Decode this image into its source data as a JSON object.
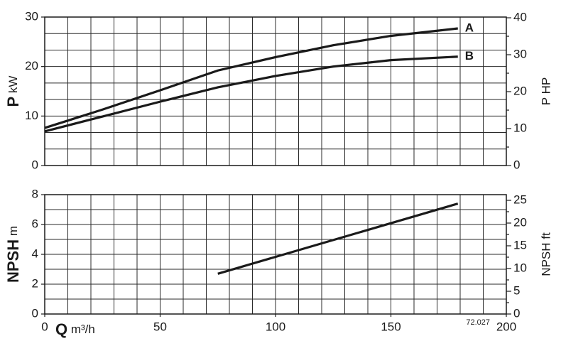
{
  "chart_data": [
    {
      "type": "line",
      "ylabel_symbol": "P",
      "ylabel_unit": "kW",
      "y2label": "P HP",
      "xlim": [
        0,
        200
      ],
      "ylim": [
        0,
        30
      ],
      "yticks": [
        0,
        10,
        20,
        30
      ],
      "y2lim": [
        0,
        40.2
      ],
      "y2ticks": [
        0,
        10,
        20,
        30,
        40
      ],
      "series": [
        {
          "name": "A",
          "color": "#1a1a1a",
          "x": [
            0,
            25,
            50,
            75,
            100,
            125,
            150,
            179
          ],
          "values": [
            7.6,
            11.3,
            15.2,
            19.2,
            21.9,
            24.3,
            26.2,
            27.7
          ]
        },
        {
          "name": "B",
          "color": "#1a1a1a",
          "x": [
            0,
            25,
            50,
            75,
            100,
            125,
            150,
            179
          ],
          "values": [
            6.9,
            9.9,
            12.9,
            15.8,
            18.1,
            20.0,
            21.3,
            22.0
          ]
        }
      ],
      "grid": true
    },
    {
      "type": "line",
      "ylabel_symbol": "NPSH",
      "ylabel_unit": "m",
      "y2label": "NPSH ft",
      "xlabel_symbol": "Q",
      "xlabel_unit": "m³/h",
      "note": "72.027",
      "xlim": [
        0,
        200
      ],
      "xticks": [
        0,
        50,
        100,
        150,
        200
      ],
      "ylim": [
        0,
        8
      ],
      "yticks": [
        0,
        2,
        4,
        6,
        8
      ],
      "y2lim": [
        0,
        26.25
      ],
      "y2ticks": [
        0,
        5,
        10,
        15,
        20,
        25
      ],
      "series": [
        {
          "color": "#1a1a1a",
          "x": [
            75,
            179
          ],
          "values": [
            2.7,
            7.4
          ]
        }
      ],
      "grid": true
    }
  ]
}
